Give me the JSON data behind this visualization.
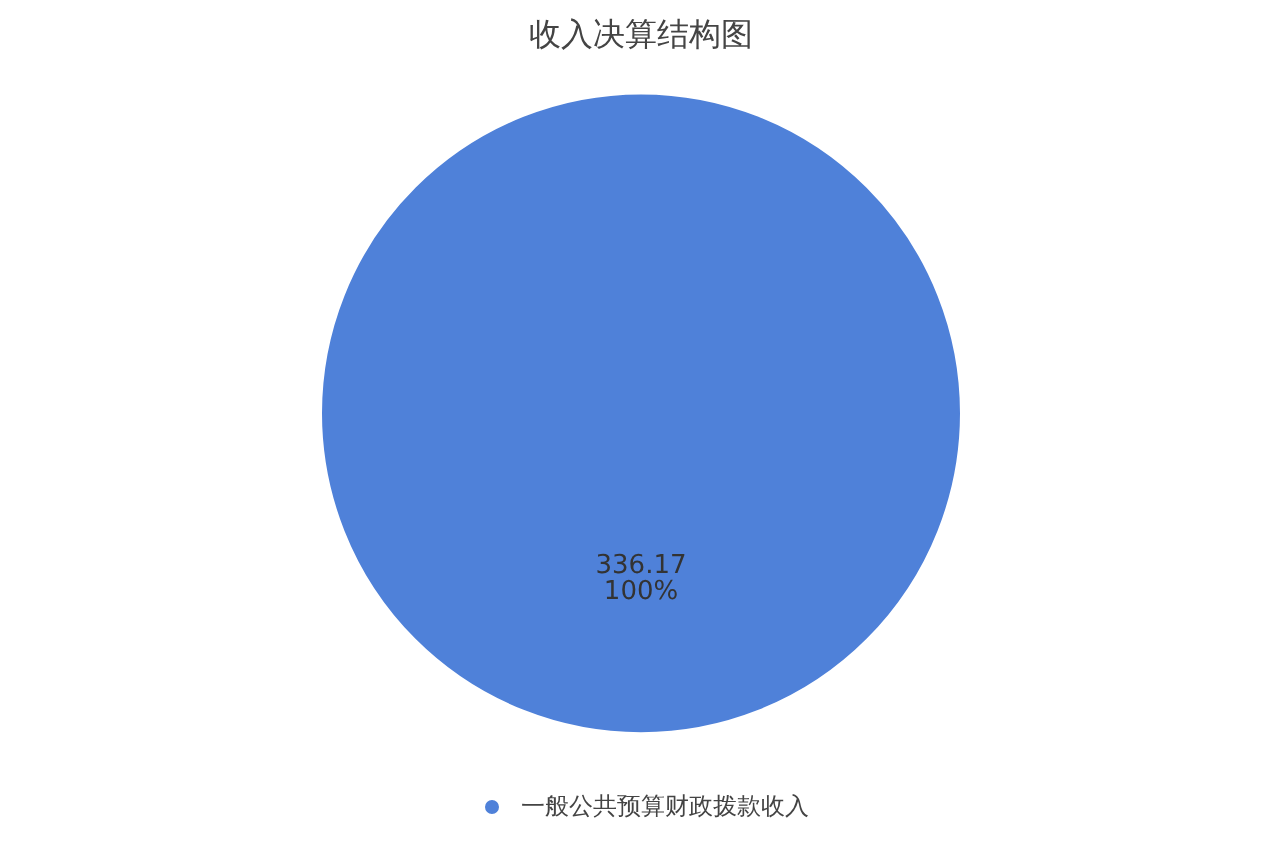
{
  "chart_data": {
    "type": "pie",
    "title": "收入决算结构图",
    "categories": [
      "一般公共预算财政拨款收入"
    ],
    "values": [
      336.17
    ],
    "colors": [
      "#4f81d9"
    ],
    "data_labels": true,
    "annotations": [
      "100%"
    ],
    "legend": "bottom"
  }
}
